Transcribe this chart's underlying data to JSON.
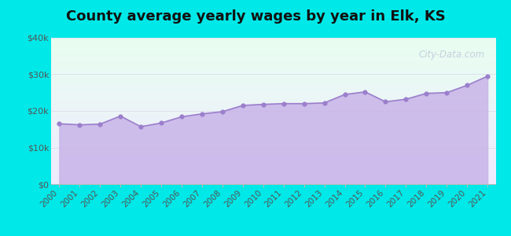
{
  "title": "County average yearly wages by year in Elk, KS",
  "years": [
    2000,
    2001,
    2002,
    2003,
    2004,
    2005,
    2006,
    2007,
    2008,
    2009,
    2010,
    2011,
    2012,
    2013,
    2014,
    2015,
    2016,
    2017,
    2018,
    2019,
    2020,
    2021
  ],
  "wages": [
    16500,
    16200,
    16400,
    18600,
    15700,
    16700,
    18400,
    19200,
    19800,
    21500,
    21800,
    22000,
    22000,
    22200,
    24500,
    25200,
    22500,
    23200,
    24800,
    25000,
    27000,
    29500
  ],
  "ylim": [
    0,
    40000
  ],
  "yticks": [
    0,
    10000,
    20000,
    30000,
    40000
  ],
  "ytick_labels": [
    "$0",
    "$10k",
    "$20k",
    "$30k",
    "$40k"
  ],
  "fill_color": "#c8b4e8",
  "fill_alpha": 0.85,
  "line_color": "#9b7fcc",
  "dot_color": "#9b7fcc",
  "dot_size": 12,
  "background_color": "#00e8e8",
  "plot_bg_top": "#e8fef0",
  "plot_bg_bottom": "#f0ebff",
  "title_fontsize": 13,
  "title_fontweight": "bold",
  "watermark": "City-Data.com",
  "watermark_color": "#aaaacc",
  "watermark_alpha": 0.55,
  "tick_label_color": "#555555",
  "tick_label_fontsize": 7.5,
  "ytick_fontsize": 8,
  "grid_color": "#ddddee",
  "spine_color": "#bbbbbb"
}
